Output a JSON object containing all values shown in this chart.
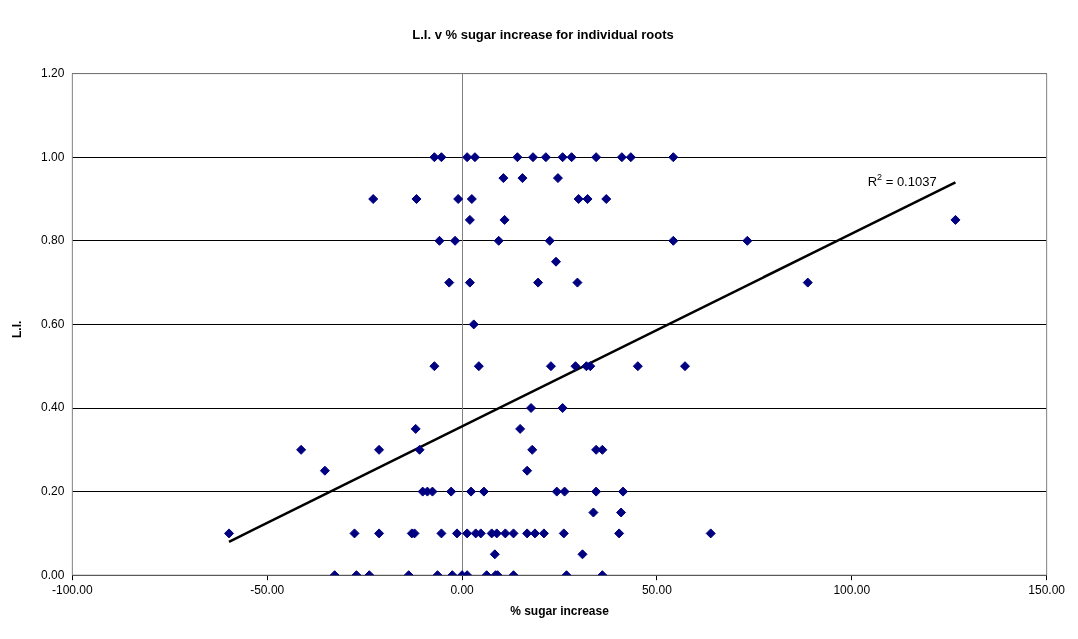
{
  "chart_data": {
    "type": "scatter",
    "title": "L.I. v % sugar increase for individual roots",
    "xlabel": "% sugar increase",
    "ylabel": "L.I.",
    "marker": "diamond",
    "grid": "y",
    "legend": false,
    "xlim": [
      -100,
      150
    ],
    "xticks": [
      {
        "value": -100,
        "label": "-100.00"
      },
      {
        "value": -50,
        "label": "-50.00"
      },
      {
        "value": 0,
        "label": "0.00"
      },
      {
        "value": 50,
        "label": "50.00"
      },
      {
        "value": 100,
        "label": "100.00"
      },
      {
        "value": 150,
        "label": "150.00"
      }
    ],
    "ylim": [
      0,
      1.2
    ],
    "yticks": [
      {
        "value": 0,
        "label": "0.00"
      },
      {
        "value": 0.2,
        "label": "0.20"
      },
      {
        "value": 0.4,
        "label": "0.40"
      },
      {
        "value": 0.6,
        "label": "0.60"
      },
      {
        "value": 0.8,
        "label": "0.80"
      },
      {
        "value": 1,
        "label": "1.00"
      },
      {
        "value": 1.2,
        "label": "1.20"
      }
    ],
    "series": [
      {
        "type": "scatter",
        "color": "#000080",
        "x": [
          -7.1,
          -5.3,
          1.3,
          3.3,
          14.2,
          18.2,
          21.5,
          25.8,
          28.1,
          34.4,
          41.0,
          43.3,
          54.2,
          10.6,
          15.5,
          24.6,
          -22.8,
          -11.7,
          -1.0,
          2.5,
          29.9,
          32.2,
          37.0,
          2.0,
          10.9,
          126.6,
          -5.8,
          -1.8,
          9.4,
          22.5,
          54.2,
          73.2,
          24.1,
          -3.3,
          2.0,
          19.5,
          29.6,
          88.7,
          3.0,
          -7.1,
          4.3,
          22.8,
          29.1,
          31.9,
          32.9,
          45.1,
          57.2,
          17.7,
          25.8,
          -11.9,
          14.9,
          -41.3,
          -21.3,
          -10.9,
          18.0,
          34.4,
          36.0,
          -35.2,
          16.7,
          -10.1,
          -8.9,
          -7.6,
          -2.8,
          2.3,
          5.6,
          24.3,
          26.3,
          34.4,
          41.3,
          33.7,
          40.8,
          -59.8,
          -27.6,
          -21.3,
          -12.9,
          -12.2,
          -5.3,
          -1.3,
          1.3,
          3.5,
          4.8,
          7.6,
          8.9,
          11.1,
          13.2,
          16.7,
          18.7,
          21.0,
          26.1,
          40.3,
          63.8,
          8.4,
          30.9,
          -32.7,
          -27.1,
          -23.8,
          -13.7,
          -6.3,
          -2.5,
          0,
          1.3,
          6.3,
          8.6,
          9.1,
          13.2,
          26.8,
          36.0
        ],
        "values": [
          1,
          1,
          1,
          1,
          1,
          1,
          1,
          1,
          1,
          1,
          1,
          1,
          1,
          0.95,
          0.95,
          0.95,
          0.9,
          0.9,
          0.9,
          0.9,
          0.9,
          0.9,
          0.9,
          0.85,
          0.85,
          0.85,
          0.8,
          0.8,
          0.8,
          0.8,
          0.8,
          0.8,
          0.75,
          0.7,
          0.7,
          0.7,
          0.7,
          0.7,
          0.6,
          0.5,
          0.5,
          0.5,
          0.5,
          0.5,
          0.5,
          0.5,
          0.5,
          0.4,
          0.4,
          0.35,
          0.35,
          0.3,
          0.3,
          0.3,
          0.3,
          0.3,
          0.3,
          0.25,
          0.25,
          0.2,
          0.2,
          0.2,
          0.2,
          0.2,
          0.2,
          0.2,
          0.2,
          0.2,
          0.2,
          0.15,
          0.15,
          0.1,
          0.1,
          0.1,
          0.1,
          0.1,
          0.1,
          0.1,
          0.1,
          0.1,
          0.1,
          0.1,
          0.1,
          0.1,
          0.1,
          0.1,
          0.1,
          0.1,
          0.1,
          0.1,
          0.1,
          0.05,
          0.05,
          0,
          0,
          0,
          0,
          0,
          0,
          0,
          0,
          0,
          0,
          0,
          0,
          0,
          0
        ]
      },
      {
        "type": "line",
        "color": "#000000",
        "marker": "none",
        "x": [
          -59.8,
          126.6
        ],
        "values": [
          0.08,
          0.94
        ]
      }
    ],
    "annotations": [
      "R$^{2}$ = 0.1037"
    ]
  }
}
